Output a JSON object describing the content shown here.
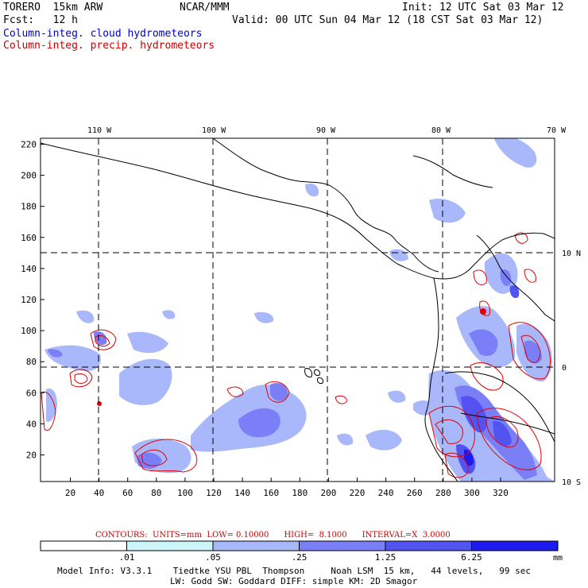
{
  "header": {
    "model": "TORERO  15km ARW",
    "org": "NCAR/MMM",
    "init": "Init: 12 UTC Sat 03 Mar 12",
    "fcst": "Fcst:   12 h",
    "valid": "Valid: 00 UTC Sun 04 Mar 12 (18 CST Sat 03 Mar 12)",
    "field_cloud": "Column-integ. cloud hydrometeors",
    "field_precip": "Column-integ. precip. hydrometeors"
  },
  "map": {
    "lon_labels": [
      "110 W",
      "100 W",
      "90 W",
      "80 W",
      "70 W"
    ],
    "lat_labels": [
      "10 N",
      "0",
      "10 S"
    ],
    "x_ticks": [
      "20",
      "40",
      "60",
      "80",
      "100",
      "120",
      "140",
      "160",
      "180",
      "200",
      "220",
      "240",
      "260",
      "280",
      "300",
      "320"
    ],
    "y_ticks": [
      "220",
      "200",
      "180",
      "160",
      "140",
      "120",
      "100",
      "80",
      "60",
      "40",
      "20"
    ]
  },
  "contour_info": {
    "label": "CONTOURS:  UNITS=mm  LOW= 0.10000      HIGH=  8.1000      INTERVAL=X  3.0000"
  },
  "colorbar": {
    "levels": [
      ".01",
      ".05",
      ".25",
      "1.25",
      "6.25"
    ],
    "units": "mm",
    "colors": [
      "#ffffff",
      "#ccf5fa",
      "#a9b8fb",
      "#7b7ff7",
      "#5353f2",
      "#1b1bf0"
    ]
  },
  "footer": {
    "line1": "Model Info: V3.3.1    Tiedtke YSU PBL  Thompson     Noah LSM  15 km,   44 levels,   99 sec",
    "line2": "LW: Godd SW: Goddard DIFF: simple KM: 2D Smagor"
  }
}
